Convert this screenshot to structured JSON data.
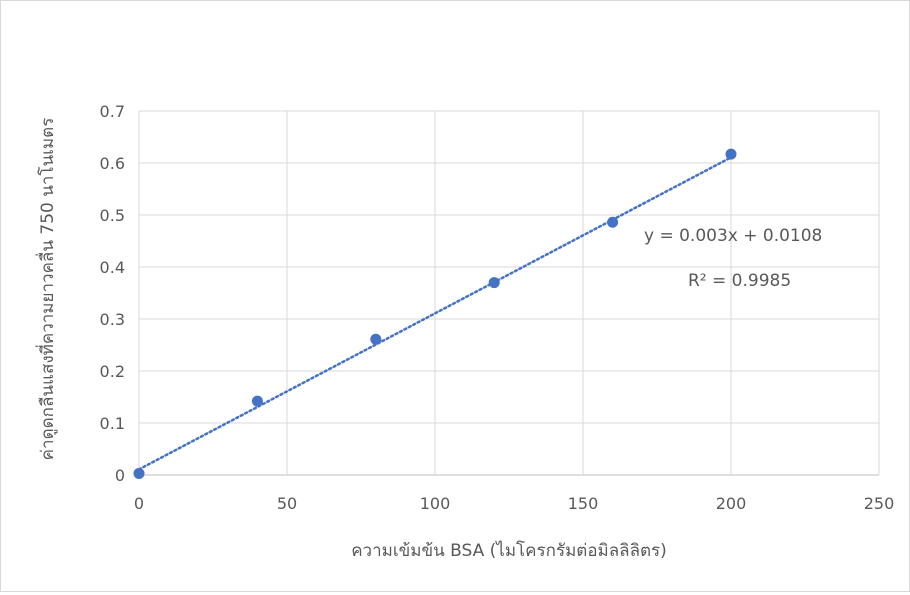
{
  "chart_data": {
    "type": "scatter",
    "title": "",
    "xlabel": "ความเข้มข้น BSA (ไมโครกรัมต่อมิลลิลิตร)",
    "ylabel": "ค่าดูดกลืนแสงที่ความยาวคลื่น 750 นาโนเมตร",
    "xlim": [
      0,
      250
    ],
    "ylim": [
      0,
      0.7
    ],
    "xticks": [
      "0",
      "50",
      "100",
      "150",
      "200",
      "250"
    ],
    "yticks": [
      "0",
      "0.1",
      "0.2",
      "0.3",
      "0.4",
      "0.5",
      "0.6",
      "0.7"
    ],
    "grid": true,
    "legend": "none",
    "series": [
      {
        "x": [
          0,
          40,
          80,
          120,
          160,
          200
        ],
        "y": [
          0.003,
          0.142,
          0.261,
          0.37,
          0.486,
          0.617
        ],
        "color": "#4472c4"
      }
    ],
    "trendline": {
      "type": "linear",
      "slope": 0.003,
      "intercept": 0.0108,
      "x_range": [
        0,
        200
      ],
      "style": "dotted",
      "color": "#4472c4"
    },
    "annotations": {
      "equation": "y = 0.003x + 0.0108",
      "r_squared": "R² = 0.9985"
    }
  }
}
